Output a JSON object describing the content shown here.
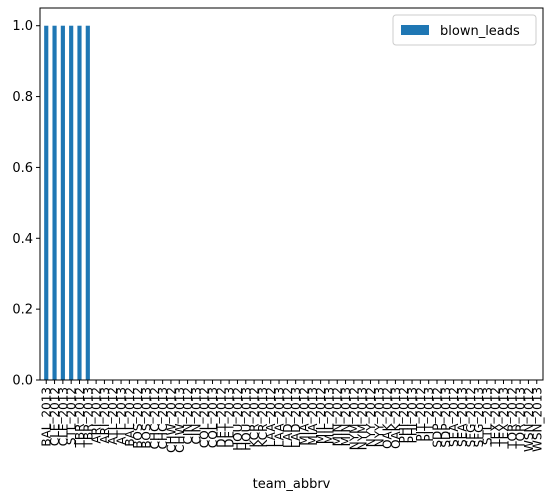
{
  "chart_data": {
    "type": "bar",
    "title": "",
    "xlabel": "team_abbrv",
    "ylabel": "",
    "ylim": [
      0,
      1.05
    ],
    "yticks": [
      0.0,
      0.2,
      0.4,
      0.6,
      0.8,
      1.0
    ],
    "ytick_labels": [
      "0.0",
      "0.2",
      "0.4",
      "0.6",
      "0.8",
      "1.0"
    ],
    "grid": false,
    "legend_position": "top-right",
    "categories": [
      "BAL_2013",
      "CLE_2012",
      "CLE_2013",
      "STL_2012",
      "TBR_2012",
      "TBR_2013",
      "ARI_2012",
      "ARI_2013",
      "ATL_2012",
      "ATL_2013",
      "BAL_2012",
      "BOS_2012",
      "BOS_2013",
      "CHC_2012",
      "CHC_2013",
      "CHW_2012",
      "CHW_2013",
      "CIN_2012",
      "CIN_2013",
      "COL_2012",
      "COL_2013",
      "DET_2012",
      "DET_2013",
      "HOU_2012",
      "HOU_2013",
      "KCR_2012",
      "KCR_2013",
      "LAA_2012",
      "LAA_2013",
      "LAD_2012",
      "LAD_2013",
      "MIA_2012",
      "MIA_2013",
      "MIL_2012",
      "MIL_2013",
      "MIN_2012",
      "MIN_2013",
      "NYM_2012",
      "NYM_2013",
      "NYY_2012",
      "NYY_2013",
      "OAK_2012",
      "OAK_2013",
      "PHI_2012",
      "PHI_2013",
      "PIT_2012",
      "PIT_2013",
      "SDP_2012",
      "SDP_2013",
      "SEA_2012",
      "SEA_2013",
      "SFG_2012",
      "SFG_2013",
      "STL_2013",
      "TEX_2012",
      "TEX_2013",
      "TOR_2012",
      "TOR_2013",
      "WSN_2012",
      "WSN_2013"
    ],
    "series": [
      {
        "name": "blown_leads",
        "color": "#1f77b4",
        "values": [
          1,
          1,
          1,
          1,
          1,
          1,
          0,
          0,
          0,
          0,
          0,
          0,
          0,
          0,
          0,
          0,
          0,
          0,
          0,
          0,
          0,
          0,
          0,
          0,
          0,
          0,
          0,
          0,
          0,
          0,
          0,
          0,
          0,
          0,
          0,
          0,
          0,
          0,
          0,
          0,
          0,
          0,
          0,
          0,
          0,
          0,
          0,
          0,
          0,
          0,
          0,
          0,
          0,
          0,
          0,
          0,
          0,
          0,
          0,
          0
        ]
      }
    ]
  }
}
